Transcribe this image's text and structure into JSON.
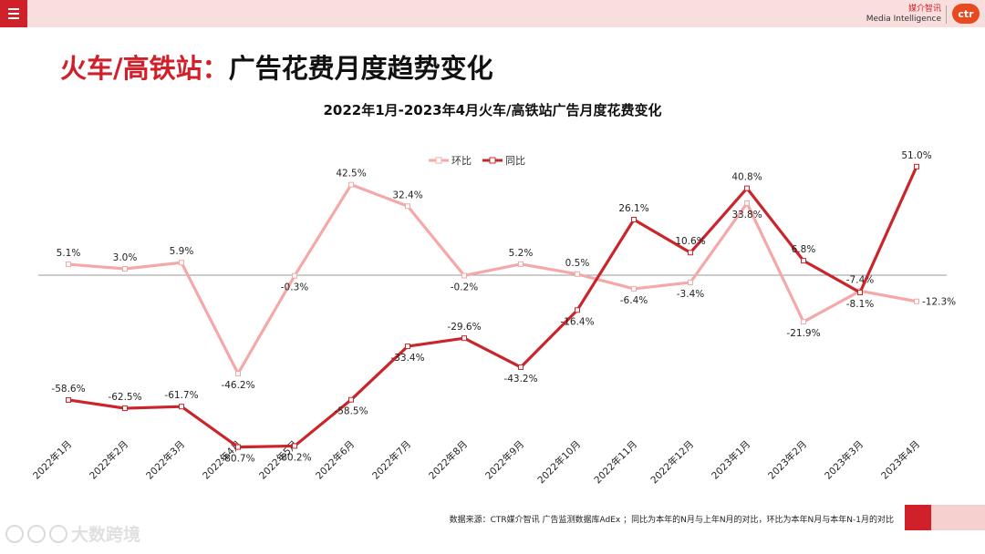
{
  "header": {
    "menu_icon": "hamburger-menu-icon",
    "brand_cn": "媒介智讯",
    "brand_en": "Media Intelligence",
    "logo_text": "ctr",
    "accent": "#d0202a",
    "bar_color": "#f9dede"
  },
  "title": {
    "highlight": "火车/高铁站：",
    "rest": "广告花费月度趋势变化"
  },
  "footer": {
    "source": "数据来源：CTR媒介智讯 广告监测数据库AdEx ；同比为本年的N月与上年N月的对比，环比为本年N月与本年N-1月的对比",
    "watermark": "大数跨境"
  },
  "chart_data": {
    "type": "line",
    "title": "2022年1月-2023年4月火车/高铁站广告月度花费变化",
    "categories": [
      "2022年1月",
      "2022年2月",
      "2022年3月",
      "2022年4月",
      "2022年5月",
      "2022年6月",
      "2022年7月",
      "2022年8月",
      "2022年9月",
      "2022年10月",
      "2022年11月",
      "2022年12月",
      "2023年1月",
      "2023年2月",
      "2023年3月",
      "2023年4月"
    ],
    "series": [
      {
        "name": "环比",
        "color": "#f4a8a8",
        "values": [
          5.1,
          3.0,
          5.9,
          -46.2,
          -0.3,
          42.5,
          32.4,
          -0.2,
          5.2,
          0.5,
          -6.4,
          -3.4,
          33.8,
          -21.9,
          -7.4,
          -12.3
        ],
        "labels": [
          "5.1%",
          "3.0%",
          "5.9%",
          "-46.2%",
          "-0.3%",
          "42.5%",
          "32.4%",
          "-0.2%",
          "5.2%",
          "0.5%",
          "-6.4%",
          "-3.4%",
          "33.8%",
          "-21.9%",
          "-7.4%",
          "-12.3%"
        ]
      },
      {
        "name": "同比",
        "color": "#c9252b",
        "values": [
          -58.6,
          -62.5,
          -61.7,
          -80.7,
          -80.2,
          -58.5,
          -33.4,
          -29.6,
          -43.2,
          -16.4,
          26.1,
          10.6,
          40.8,
          6.8,
          -8.1,
          51.0
        ],
        "labels": [
          "-58.6%",
          "-62.5%",
          "-61.7%",
          "-80.7%",
          "-80.2%",
          "-58.5%",
          "-33.4%",
          "-29.6%",
          "-43.2%",
          "-16.4%",
          "26.1%",
          "10.6%",
          "40.8%",
          "6.8%",
          "-8.1%",
          "51.0%"
        ]
      }
    ],
    "ylim": [
      -90,
      55
    ],
    "legend": "top-center",
    "grid": false,
    "zero_line": true
  }
}
